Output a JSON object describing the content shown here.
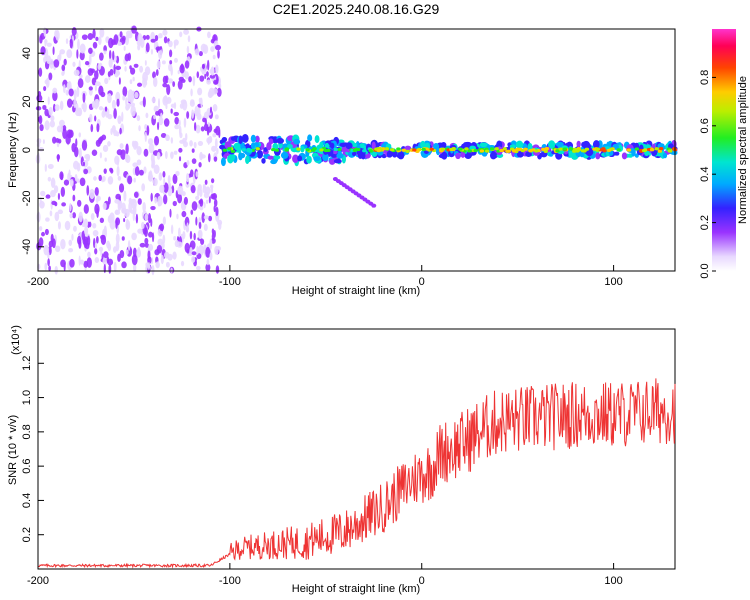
{
  "chart_data": [
    {
      "type": "heatmap",
      "title": "C2E1.2025.240.08.16.G29",
      "xlabel": "Height of straight line (km)",
      "ylabel": "Frequency (Hz)",
      "xlim": [
        -200,
        132
      ],
      "ylim": [
        -50,
        50
      ],
      "xticks": [
        -200,
        -100,
        0,
        100
      ],
      "xtick_labels": [
        "-200",
        "-100",
        "0",
        "100"
      ],
      "yticks": [
        -40,
        -20,
        0,
        20,
        40
      ],
      "ytick_labels": [
        "-40",
        "-20",
        "0",
        "20",
        "40"
      ],
      "colorbar": {
        "label": "Normalized spectral amplitude",
        "range": [
          0,
          1
        ],
        "ticks": [
          0,
          0.2,
          0.4,
          0.6,
          0.8
        ],
        "tick_labels": [
          "0.0",
          "0.2",
          "0.4",
          "0.6",
          "0.8"
        ],
        "colormap": "rainbow-white-purple-blue-cyan-green-yellow-red-magenta"
      },
      "features": {
        "noise_region_x": [
          -200,
          -105
        ],
        "signal_band_x": [
          -105,
          132
        ],
        "signal_center_freq": 0,
        "secondary_branch": {
          "x": [
            -45,
            -25
          ],
          "freq": [
            -12,
            -23
          ]
        }
      }
    },
    {
      "type": "line",
      "xlabel": "Height of straight line (km)",
      "ylabel": "SNR (10 * v/v)",
      "scale_label": "(x10⁴)",
      "xlim": [
        -200,
        132
      ],
      "ylim": [
        0,
        1.4
      ],
      "xticks": [
        -200,
        -100,
        0,
        100
      ],
      "xtick_labels": [
        "-200",
        "-100",
        "0",
        "100"
      ],
      "yticks": [
        0.2,
        0.4,
        0.6,
        0.8,
        1.0,
        1.2
      ],
      "ytick_labels": [
        "0.2",
        "0.4",
        "0.6",
        "0.8",
        "1.0",
        "1.2"
      ],
      "series_color": "#ee3333",
      "trend": {
        "x": [
          -200,
          -110,
          -95,
          -80,
          -60,
          -40,
          -20,
          -5,
          0,
          5,
          10,
          20,
          30,
          40,
          60,
          80,
          100,
          120,
          132
        ],
        "y": [
          0.02,
          0.02,
          0.12,
          0.14,
          0.16,
          0.22,
          0.36,
          0.52,
          0.55,
          0.58,
          0.68,
          0.72,
          0.8,
          0.86,
          0.88,
          0.9,
          0.9,
          0.92,
          0.93
        ]
      }
    }
  ]
}
